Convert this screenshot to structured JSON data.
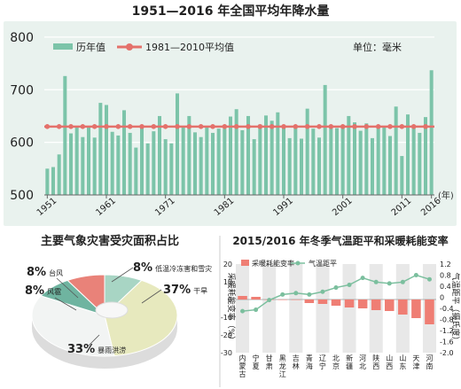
{
  "colors": {
    "panel_bg": "#e9f2ee",
    "bar": "#7cc4a9",
    "avg_line": "#e4716b",
    "grid": "#ffffff",
    "text": "#222222",
    "donut_pink": "#e98279",
    "donut_mint": "#a8d5c4",
    "donut_teal": "#6fb4a0",
    "donut_cream": "#e7e9be",
    "donut_light": "#f2f4f3",
    "diff_line": "#7bbf9e",
    "energy_bar": "#ef7e74",
    "stripe": "#e8e8e8"
  },
  "top": {
    "title": "1951—2016 年全国平均年降水量",
    "unit": "单位：毫米",
    "year_unit": "(年)",
    "chart_data": {
      "type": "bar",
      "title": "1951—2016 年全国平均年降水量",
      "ylim": [
        500,
        820
      ],
      "yticks": [
        "500",
        "600",
        "700",
        "800"
      ],
      "ytick_values": [
        500,
        600,
        700,
        800
      ],
      "xtick_labels": [
        "1951",
        "1961",
        "1971",
        "1981",
        "1991",
        "2001",
        "2011",
        "2016"
      ],
      "xtick_years": [
        1951,
        1961,
        1971,
        1981,
        1991,
        2001,
        2011,
        2016
      ],
      "x": [
        1951,
        1952,
        1953,
        1954,
        1955,
        1956,
        1957,
        1958,
        1959,
        1960,
        1961,
        1962,
        1963,
        1964,
        1965,
        1966,
        1967,
        1968,
        1969,
        1970,
        1971,
        1972,
        1973,
        1974,
        1975,
        1976,
        1977,
        1978,
        1979,
        1980,
        1981,
        1982,
        1983,
        1984,
        1985,
        1986,
        1987,
        1988,
        1989,
        1990,
        1991,
        1992,
        1993,
        1994,
        1995,
        1996,
        1997,
        1998,
        1999,
        2000,
        2001,
        2002,
        2003,
        2004,
        2005,
        2006,
        2007,
        2008,
        2009,
        2010,
        2011,
        2012,
        2013,
        2014,
        2015,
        2016
      ],
      "series": [
        {
          "name": "历年值",
          "values": [
            550,
            553,
            577,
            726,
            617,
            631,
            610,
            629,
            609,
            675,
            671,
            620,
            613,
            661,
            618,
            590,
            631,
            598,
            621,
            650,
            606,
            598,
            693,
            631,
            650,
            619,
            610,
            628,
            618,
            626,
            626,
            649,
            663,
            623,
            650,
            606,
            634,
            651,
            641,
            657,
            627,
            608,
            628,
            607,
            664,
            626,
            609,
            709,
            631,
            627,
            628,
            650,
            638,
            622,
            636,
            608,
            632,
            631,
            612,
            668,
            574,
            653,
            629,
            618,
            648,
            737
          ]
        },
        {
          "name": "1981—2010平均值",
          "value": 630
        }
      ]
    }
  },
  "bottom_left": {
    "title": "主要气象灾害受灾面积占比",
    "chart_data": {
      "type": "pie",
      "title": "主要气象灾害受灾面积占比",
      "slices": [
        {
          "name": "干旱",
          "value": 37,
          "label": "37%"
        },
        {
          "name": "暴雨洪涝",
          "value": 33,
          "label": "33%"
        },
        {
          "name": "风雹",
          "value": 8,
          "label": "8%"
        },
        {
          "name": "台风",
          "value": 8,
          "label": "8%"
        },
        {
          "name": "低温冷冻害和雪灾",
          "value": 8,
          "label": "8%"
        }
      ]
    }
  },
  "bottom_right": {
    "title": "2015/2016 年冬季气温距平和采暖耗能变率",
    "ylabel_left": "采暖耗能变率（%）",
    "ylabel_right": "气温距平（摄氏度）",
    "chart_data": {
      "type": "bar",
      "title": "2015/2016 年冬季气温距平和采暖耗能变率",
      "categories": [
        "内蒙古",
        "宁夏",
        "甘肃",
        "黑龙江",
        "吉林",
        "青海",
        "辽宁",
        "北京",
        "新疆",
        "河北",
        "陕西",
        "山西",
        "山东",
        "天津",
        "河南"
      ],
      "left_ylim": [
        -30,
        20
      ],
      "left_yticks": [
        "20",
        "10",
        "0",
        "-10",
        "-20",
        "-30"
      ],
      "left_ytick_values": [
        20,
        10,
        0,
        -10,
        -20,
        -30
      ],
      "right_ylim": [
        -2.0,
        1.2
      ],
      "right_yticks": [
        "1.2",
        "0.8",
        "0.4",
        "0",
        "-0.4",
        "-0.8",
        "-1.2",
        "-1.6",
        "-2.0"
      ],
      "right_ytick_values": [
        1.2,
        0.8,
        0.4,
        0,
        -0.4,
        -0.8,
        -1.2,
        -1.6,
        -2.0
      ],
      "series": [
        {
          "name": "采暖耗能变率",
          "type": "bar",
          "axis": "left",
          "values": [
            2,
            1.5,
            0,
            0,
            0,
            -2,
            -2.5,
            -3.5,
            -4.5,
            -5,
            -6,
            -6.5,
            -8.5,
            -10.5,
            -14
          ]
        },
        {
          "name": "气温距平",
          "type": "line",
          "axis": "right",
          "values": [
            -0.5,
            -0.45,
            -0.1,
            0.1,
            0.15,
            0.1,
            0.2,
            0.35,
            0.45,
            0.7,
            0.55,
            0.5,
            0.55,
            0.8,
            0.65
          ]
        }
      ]
    }
  }
}
